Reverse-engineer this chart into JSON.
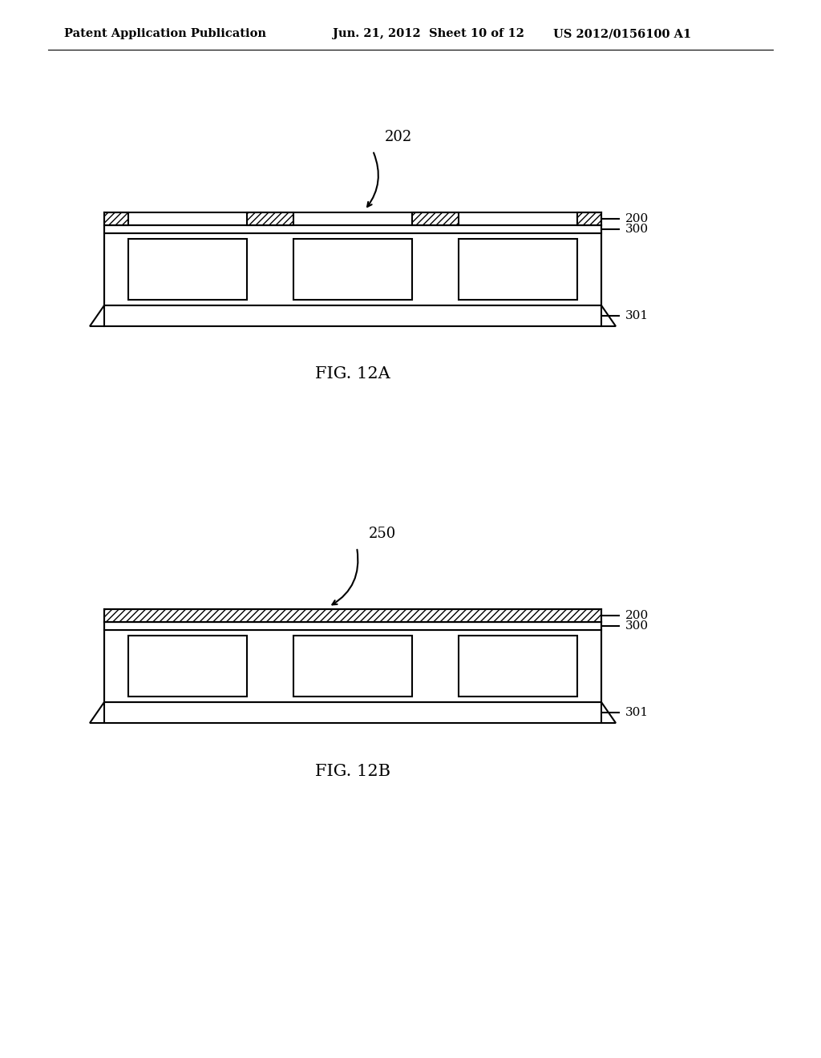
{
  "bg_color": "#ffffff",
  "header_left": "Patent Application Publication",
  "header_mid": "Jun. 21, 2012  Sheet 10 of 12",
  "header_right": "US 2012/0156100 A1",
  "fig_label_A": "FIG. 12A",
  "fig_label_B": "FIG. 12B",
  "label_202": "202",
  "label_250": "250",
  "label_200": "200",
  "label_300": "300",
  "label_301": "301",
  "hatch_pattern": "////",
  "line_color": "#000000",
  "face_color_white": "#ffffff"
}
